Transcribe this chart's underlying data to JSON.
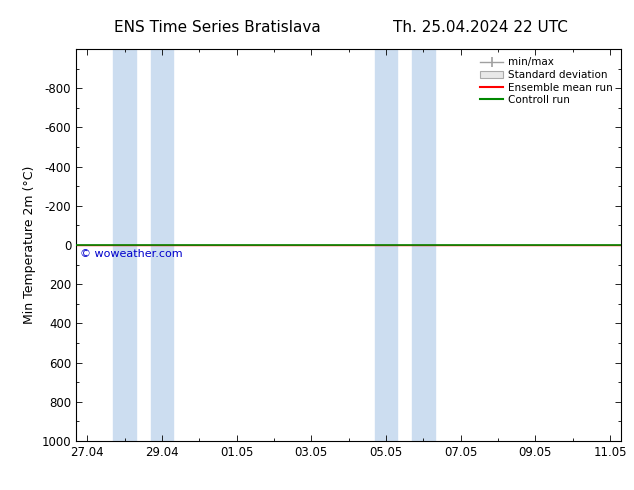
{
  "title_left": "ENS Time Series Bratislava",
  "title_right": "Th. 25.04.2024 22 UTC",
  "ylabel": "Min Temperature 2m (°C)",
  "ymin": -1000,
  "ymax": 1000,
  "yticks": [
    -800,
    -600,
    -400,
    -200,
    0,
    200,
    400,
    600,
    800,
    1000
  ],
  "xtick_labels": [
    "27.04",
    "29.04",
    "01.05",
    "03.05",
    "05.05",
    "07.05",
    "09.05",
    "11.05"
  ],
  "xtick_positions": [
    0,
    2,
    4,
    6,
    8,
    10,
    12,
    14
  ],
  "xmin": -0.3,
  "xmax": 14.3,
  "shaded_bands": [
    {
      "xstart": 0.7,
      "xend": 1.3
    },
    {
      "xstart": 1.7,
      "xend": 2.3
    },
    {
      "xstart": 7.7,
      "xend": 8.3
    },
    {
      "xstart": 8.7,
      "xend": 9.3
    }
  ],
  "green_line_y": 0,
  "red_line_y": 0,
  "watermark": "© woweather.com",
  "watermark_color": "#0000cc",
  "bg_color": "#ffffff",
  "plot_bg_color": "#ffffff",
  "shade_color": "#ccddf0",
  "legend_labels": [
    "min/max",
    "Standard deviation",
    "Ensemble mean run",
    "Controll run"
  ],
  "legend_colors": [
    "#909090",
    "#c0c0c0",
    "#ff0000",
    "#008800"
  ],
  "minmax_color": "#a0a0a0",
  "title_fontsize": 11,
  "axis_label_fontsize": 9,
  "tick_fontsize": 8.5,
  "legend_fontsize": 7.5
}
